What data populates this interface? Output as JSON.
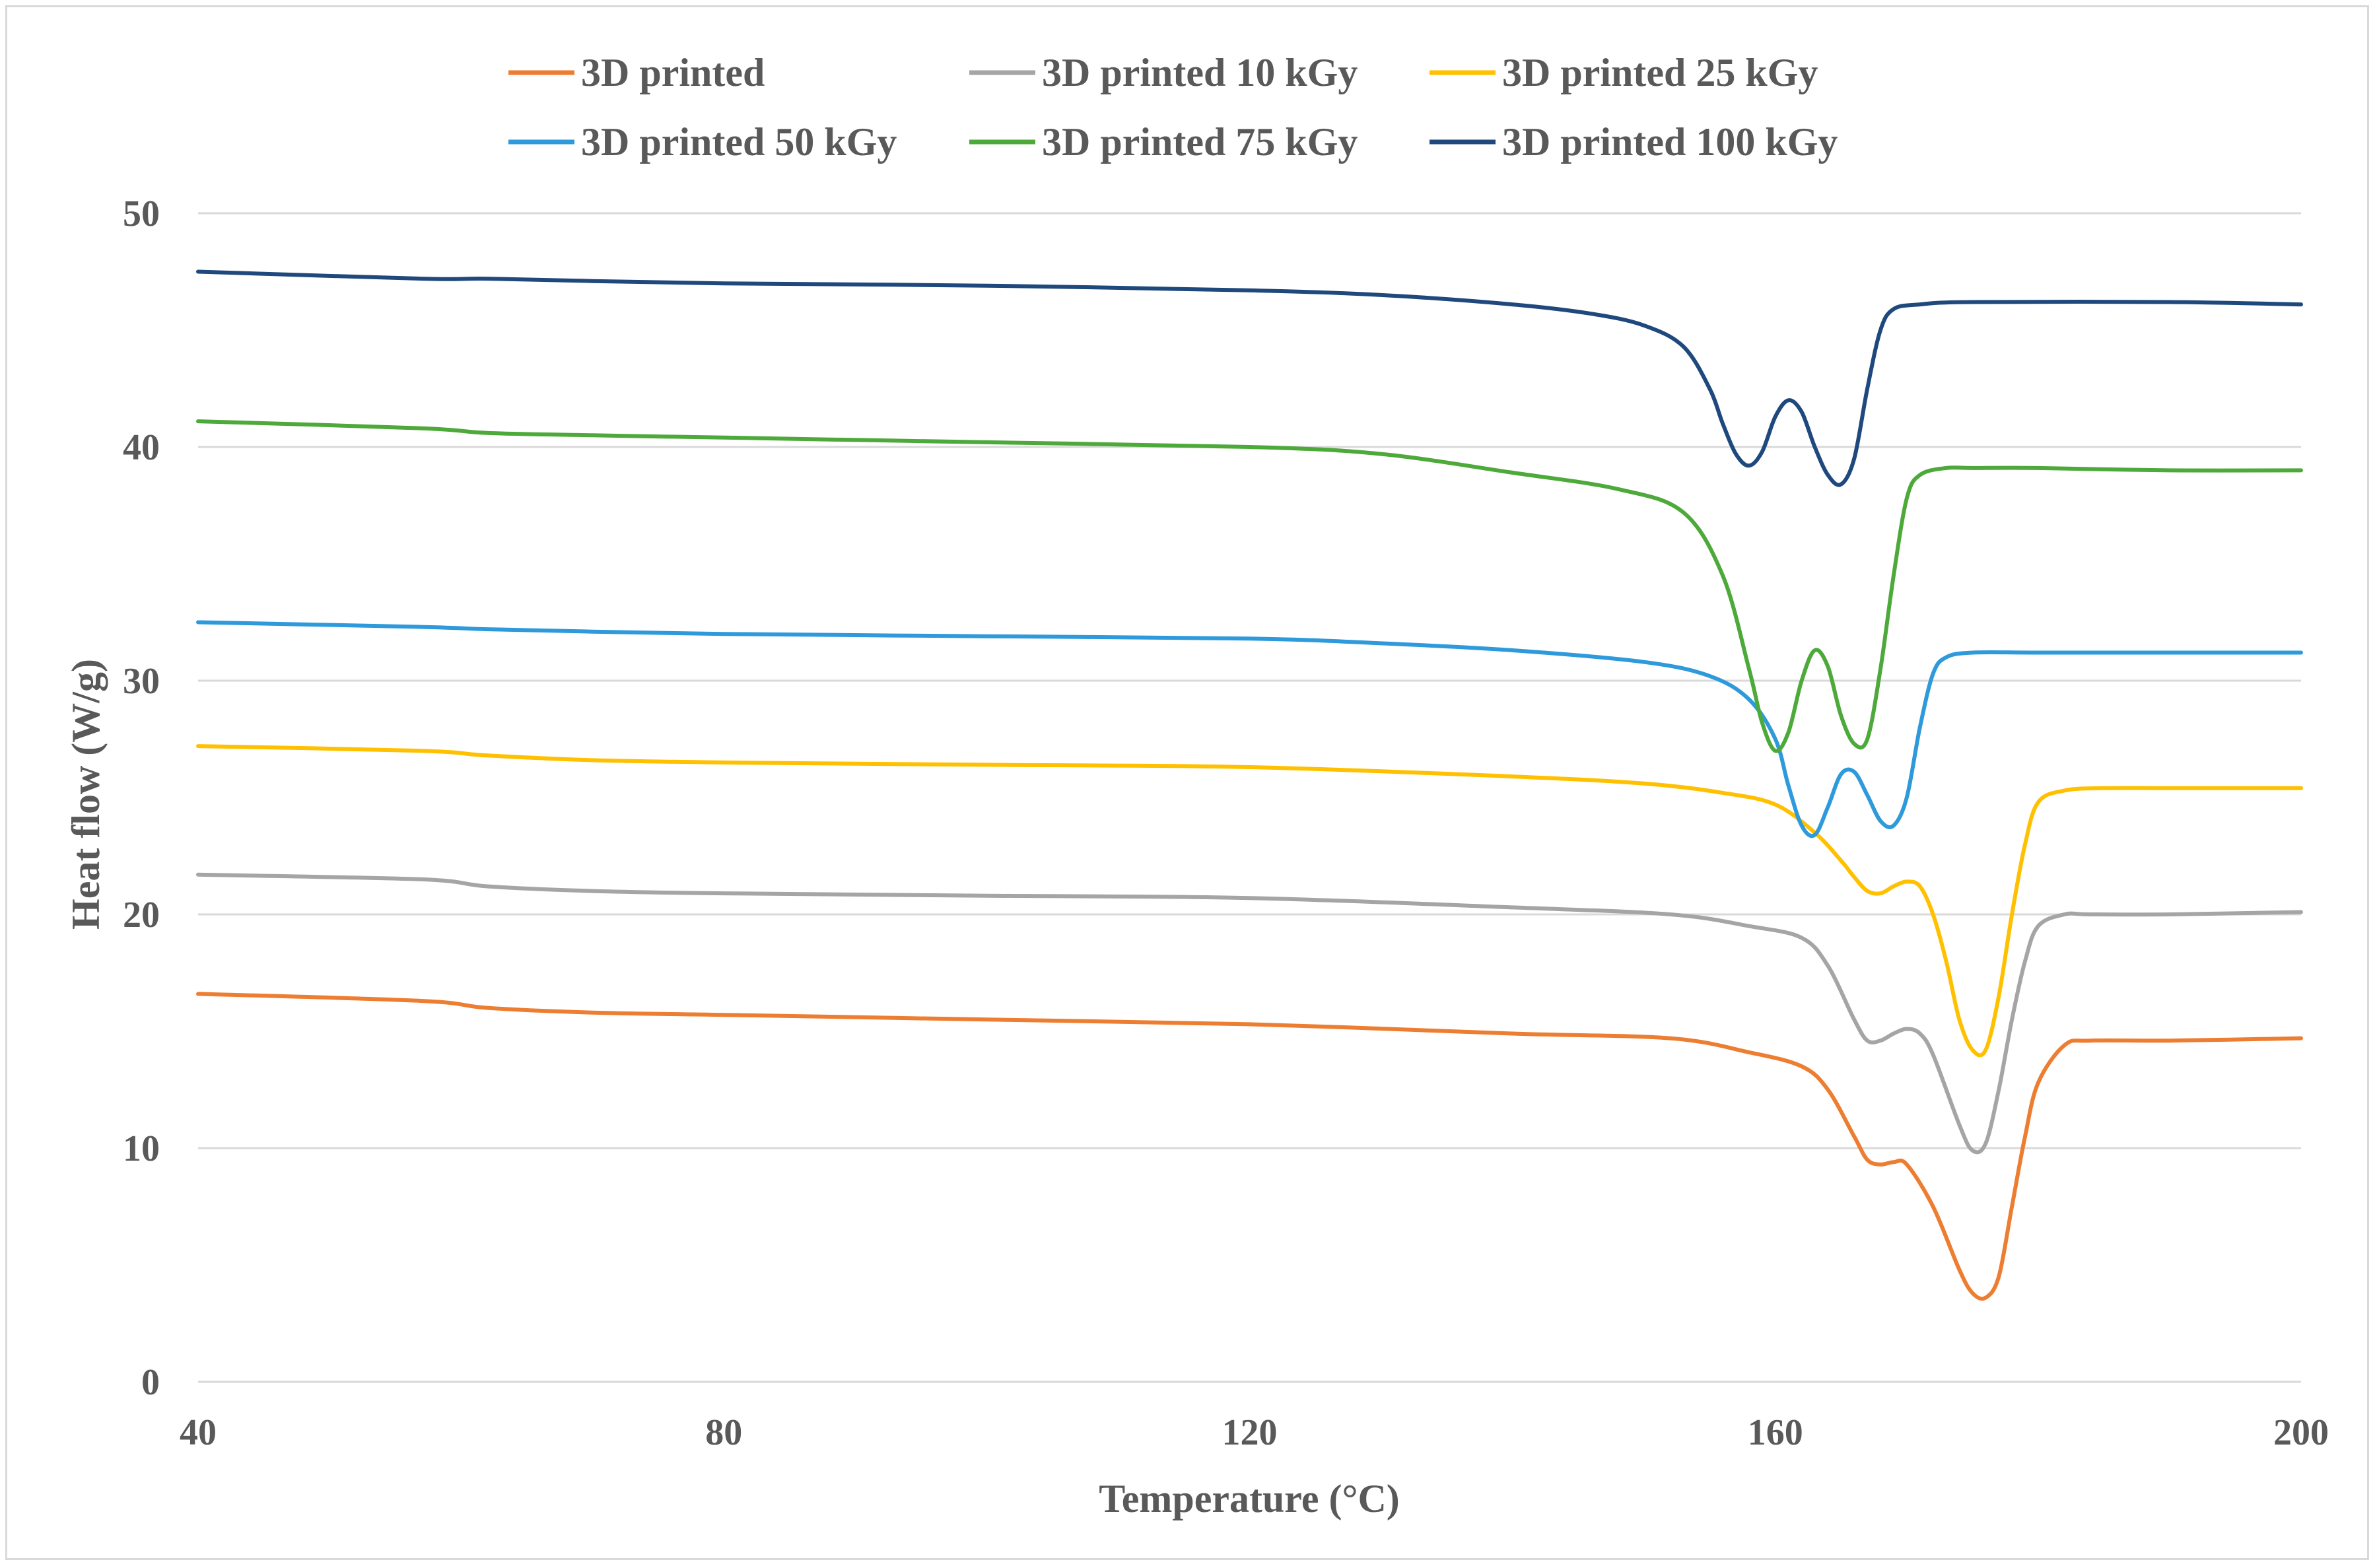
{
  "chart_data": {
    "type": "line",
    "title": "",
    "xlabel": "Temperature (°C)",
    "ylabel": "Heat flow (W/g)",
    "xlim": [
      40,
      200
    ],
    "ylim": [
      0,
      50
    ],
    "xticks": [
      40,
      80,
      120,
      160,
      200
    ],
    "yticks": [
      0,
      10,
      20,
      30,
      40,
      50
    ],
    "grid": true,
    "legend_position": "top",
    "series": [
      {
        "name": "3D printed",
        "color": "#ED7D31",
        "x": [
          40,
          57,
          62,
          70,
          80,
          100,
          120,
          140,
          152,
          158,
          162,
          164,
          166,
          167,
          168,
          169,
          170,
          172,
          174,
          175,
          176,
          177,
          178,
          179,
          180,
          182,
          184,
          190,
          200
        ],
        "y": [
          16.6,
          16.3,
          16.0,
          15.8,
          15.7,
          15.5,
          15.3,
          14.9,
          14.7,
          14.1,
          13.5,
          12.5,
          10.5,
          9.5,
          9.3,
          9.4,
          9.3,
          7.5,
          4.8,
          3.8,
          3.6,
          4.5,
          7.5,
          10.5,
          12.8,
          14.4,
          14.6,
          14.6,
          14.7
        ]
      },
      {
        "name": "3D printed 10 kGy",
        "color": "#A5A5A5",
        "x": [
          40,
          57,
          62,
          70,
          80,
          100,
          120,
          140,
          152,
          158,
          162,
          164,
          166,
          167,
          168,
          169,
          170,
          171,
          172,
          174,
          175,
          176,
          177,
          178,
          179,
          180,
          182,
          184,
          190,
          200
        ],
        "y": [
          21.7,
          21.5,
          21.2,
          21.0,
          20.9,
          20.8,
          20.7,
          20.3,
          20.0,
          19.5,
          19.0,
          17.8,
          15.5,
          14.6,
          14.6,
          14.9,
          15.1,
          14.9,
          14.0,
          11.0,
          9.9,
          10.2,
          12.5,
          15.5,
          18.0,
          19.5,
          20.0,
          20.0,
          20.0,
          20.1
        ]
      },
      {
        "name": "3D printed 25 kGy",
        "color": "#FFC000",
        "x": [
          40,
          57,
          62,
          70,
          80,
          100,
          120,
          140,
          150,
          156,
          160,
          163,
          165,
          166,
          167,
          168,
          169,
          170,
          171,
          172,
          173,
          174,
          175,
          176,
          177,
          178,
          179,
          180,
          182,
          185,
          190,
          200
        ],
        "y": [
          27.2,
          27.0,
          26.8,
          26.6,
          26.5,
          26.4,
          26.3,
          25.9,
          25.6,
          25.2,
          24.7,
          23.5,
          22.3,
          21.6,
          21.0,
          20.9,
          21.2,
          21.4,
          21.2,
          20.0,
          18.0,
          15.5,
          14.2,
          14.2,
          16.5,
          20.0,
          23.0,
          24.8,
          25.3,
          25.4,
          25.4,
          25.4
        ]
      },
      {
        "name": "3D printed 50 kGy",
        "color": "#2E9ADB",
        "x": [
          40,
          57,
          62,
          70,
          80,
          100,
          120,
          130,
          140,
          150,
          155,
          158,
          160,
          161,
          162,
          163,
          164,
          165,
          166,
          167,
          168,
          169,
          170,
          171,
          172,
          173,
          175,
          180,
          190,
          200
        ],
        "y": [
          32.5,
          32.3,
          32.2,
          32.1,
          32.0,
          31.9,
          31.8,
          31.6,
          31.3,
          30.8,
          30.2,
          29.2,
          27.5,
          25.5,
          23.8,
          23.4,
          24.6,
          26.0,
          26.1,
          25.1,
          24.0,
          23.8,
          25.0,
          28.0,
          30.3,
          31.0,
          31.2,
          31.2,
          31.2,
          31.2
        ]
      },
      {
        "name": "3D printed 75 kGy",
        "color": "#4DAA3A",
        "x": [
          40,
          57,
          62,
          70,
          80,
          100,
          120,
          130,
          140,
          148,
          153,
          156,
          158,
          159,
          160,
          161,
          162,
          163,
          164,
          165,
          166,
          167,
          168,
          169,
          170,
          171,
          173,
          175,
          180,
          190,
          200
        ],
        "y": [
          41.1,
          40.8,
          40.6,
          40.5,
          40.4,
          40.2,
          40.0,
          39.7,
          38.9,
          38.2,
          37.2,
          34.5,
          30.5,
          28.2,
          27.0,
          27.8,
          30.0,
          31.3,
          30.6,
          28.5,
          27.3,
          27.5,
          30.5,
          34.5,
          37.8,
          38.8,
          39.1,
          39.1,
          39.1,
          39.0,
          39.0
        ]
      },
      {
        "name": "3D printed 100 kGy",
        "color": "#1F497D",
        "x": [
          40,
          57,
          62,
          70,
          80,
          100,
          120,
          130,
          140,
          146,
          150,
          153,
          155,
          156,
          157,
          158,
          159,
          160,
          161,
          162,
          163,
          164,
          165,
          166,
          167,
          168,
          169,
          171,
          175,
          190,
          200
        ],
        "y": [
          47.5,
          47.2,
          47.2,
          47.1,
          47.0,
          46.9,
          46.7,
          46.5,
          46.1,
          45.7,
          45.2,
          44.3,
          42.5,
          41.0,
          39.7,
          39.2,
          39.8,
          41.3,
          42.0,
          41.5,
          40.0,
          38.8,
          38.4,
          39.5,
          42.5,
          45.0,
          45.9,
          46.1,
          46.2,
          46.2,
          46.1
        ]
      }
    ]
  }
}
